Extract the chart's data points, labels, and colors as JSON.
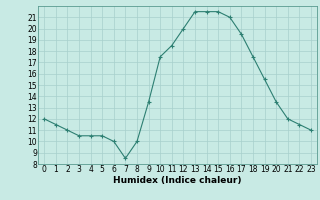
{
  "x": [
    0,
    1,
    2,
    3,
    4,
    5,
    6,
    7,
    8,
    9,
    10,
    11,
    12,
    13,
    14,
    15,
    16,
    17,
    18,
    19,
    20,
    21,
    22,
    23
  ],
  "y": [
    12,
    11.5,
    11,
    10.5,
    10.5,
    10.5,
    10,
    8.5,
    10,
    13.5,
    17.5,
    18.5,
    20,
    21.5,
    21.5,
    21.5,
    21,
    19.5,
    17.5,
    15.5,
    13.5,
    12,
    11.5,
    11
  ],
  "line_color": "#2d7f72",
  "marker": "+",
  "marker_color": "#2d7f72",
  "bg_color": "#c8eae4",
  "grid_color": "#a8d0cc",
  "xlabel": "Humidex (Indice chaleur)",
  "ylim": [
    8,
    22
  ],
  "xlim": [
    -0.5,
    23.5
  ],
  "yticks": [
    8,
    9,
    10,
    11,
    12,
    13,
    14,
    15,
    16,
    17,
    18,
    19,
    20,
    21
  ],
  "xticks": [
    0,
    1,
    2,
    3,
    4,
    5,
    6,
    7,
    8,
    9,
    10,
    11,
    12,
    13,
    14,
    15,
    16,
    17,
    18,
    19,
    20,
    21,
    22,
    23
  ],
  "tick_fontsize": 5.5,
  "label_fontsize": 6.5
}
